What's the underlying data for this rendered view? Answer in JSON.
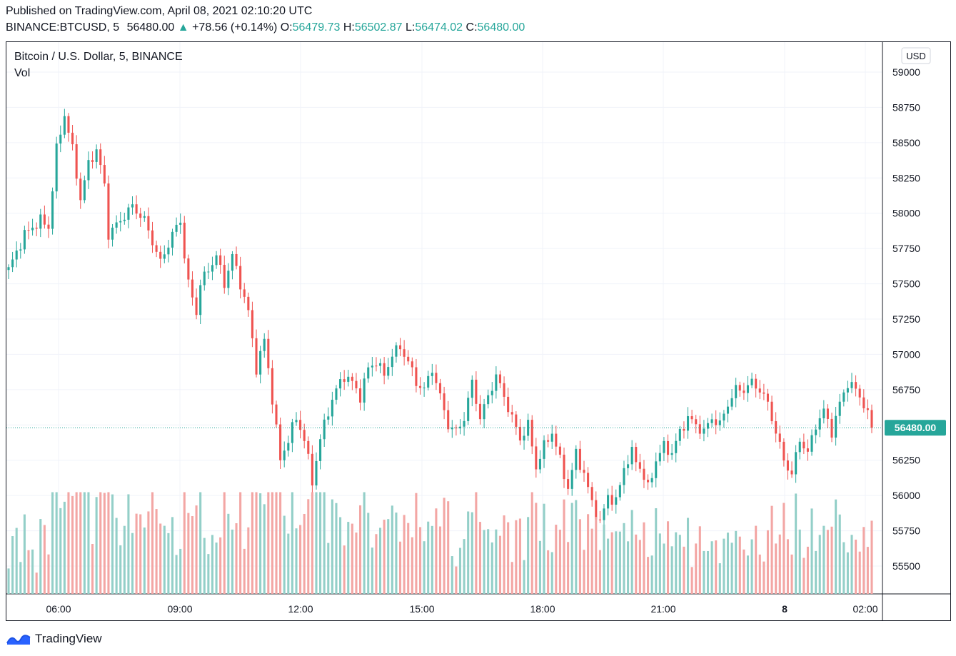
{
  "header": {
    "published": "Published on TradingView.com, April 08, 2021 02:10:20 UTC",
    "symbol_line": "BINANCE:BTCUSD, 5",
    "last": "56480.00",
    "change": "+78.56 (+0.14%)",
    "o_label": "O:",
    "o_value": "56479.73",
    "h_label": "H:",
    "h_value": "56502.87",
    "l_label": "L:",
    "l_value": "56474.02",
    "c_label": "C:",
    "c_value": "56480.00"
  },
  "legend": {
    "title": "Bitcoin / U.S. Dollar, 5, BINANCE",
    "volume_label": "Vol"
  },
  "currency_button": "USD",
  "price_label": "56480.00",
  "brand": "TradingView",
  "colors": {
    "up": "#26a69a",
    "down": "#ef5350",
    "up_vol": "#93cfc8",
    "down_vol": "#f3a6a4",
    "grid": "#f0f3fa",
    "price_tag": "#26a69a"
  },
  "chart_data": {
    "type": "candlestick",
    "title": "Bitcoin / U.S. Dollar, 5, BINANCE",
    "ylim": [
      55300,
      59150
    ],
    "y_ticks": [
      59000,
      58750,
      58500,
      58250,
      58000,
      57750,
      57500,
      57250,
      57000,
      56750,
      56500,
      56250,
      56000,
      55750,
      55500
    ],
    "x_ticks": [
      "06:00",
      "09:00",
      "12:00",
      "15:00",
      "18:00",
      "21:00",
      "8",
      "02:00"
    ],
    "x_ticks_bold": [
      "8"
    ],
    "last_price": 56480.0,
    "grid": true,
    "ohlc_anchors": [
      {
        "t": 0,
        "p": 57600
      },
      {
        "t": 4,
        "p": 57850
      },
      {
        "t": 8,
        "p": 57950
      },
      {
        "t": 10,
        "p": 57900
      },
      {
        "t": 12,
        "p": 58450
      },
      {
        "t": 14,
        "p": 58700
      },
      {
        "t": 16,
        "p": 58450
      },
      {
        "t": 18,
        "p": 58100
      },
      {
        "t": 20,
        "p": 58350
      },
      {
        "t": 22,
        "p": 58450
      },
      {
        "t": 24,
        "p": 58200
      },
      {
        "t": 25,
        "p": 57850
      },
      {
        "t": 28,
        "p": 57950
      },
      {
        "t": 31,
        "p": 58050
      },
      {
        "t": 34,
        "p": 57950
      },
      {
        "t": 36,
        "p": 57800
      },
      {
        "t": 38,
        "p": 57650
      },
      {
        "t": 41,
        "p": 57850
      },
      {
        "t": 43,
        "p": 57950
      },
      {
        "t": 44,
        "p": 57700
      },
      {
        "t": 45,
        "p": 57500
      },
      {
        "t": 47,
        "p": 57300
      },
      {
        "t": 48,
        "p": 57500
      },
      {
        "t": 50,
        "p": 57600
      },
      {
        "t": 52,
        "p": 57700
      },
      {
        "t": 54,
        "p": 57500
      },
      {
        "t": 56,
        "p": 57700
      },
      {
        "t": 58,
        "p": 57500
      },
      {
        "t": 60,
        "p": 57300
      },
      {
        "t": 62,
        "p": 56900
      },
      {
        "t": 64,
        "p": 57100
      },
      {
        "t": 65,
        "p": 56900
      },
      {
        "t": 68,
        "p": 56250
      },
      {
        "t": 70,
        "p": 56400
      },
      {
        "t": 72,
        "p": 56550
      },
      {
        "t": 74,
        "p": 56400
      },
      {
        "t": 76,
        "p": 56100
      },
      {
        "t": 78,
        "p": 56400
      },
      {
        "t": 80,
        "p": 56600
      },
      {
        "t": 82,
        "p": 56750
      },
      {
        "t": 84,
        "p": 56850
      },
      {
        "t": 86,
        "p": 56800
      },
      {
        "t": 88,
        "p": 56700
      },
      {
        "t": 90,
        "p": 56900
      },
      {
        "t": 92,
        "p": 56950
      },
      {
        "t": 94,
        "p": 56850
      },
      {
        "t": 96,
        "p": 57000
      },
      {
        "t": 98,
        "p": 57050
      },
      {
        "t": 100,
        "p": 56950
      },
      {
        "t": 102,
        "p": 56800
      },
      {
        "t": 104,
        "p": 56750
      },
      {
        "t": 106,
        "p": 56900
      },
      {
        "t": 108,
        "p": 56700
      },
      {
        "t": 110,
        "p": 56500
      },
      {
        "t": 112,
        "p": 56450
      },
      {
        "t": 114,
        "p": 56550
      },
      {
        "t": 116,
        "p": 56800
      },
      {
        "t": 118,
        "p": 56550
      },
      {
        "t": 120,
        "p": 56700
      },
      {
        "t": 122,
        "p": 56850
      },
      {
        "t": 124,
        "p": 56700
      },
      {
        "t": 126,
        "p": 56550
      },
      {
        "t": 128,
        "p": 56400
      },
      {
        "t": 130,
        "p": 56500
      },
      {
        "t": 132,
        "p": 56200
      },
      {
        "t": 134,
        "p": 56350
      },
      {
        "t": 136,
        "p": 56450
      },
      {
        "t": 138,
        "p": 56250
      },
      {
        "t": 140,
        "p": 56050
      },
      {
        "t": 142,
        "p": 56300
      },
      {
        "t": 144,
        "p": 56150
      },
      {
        "t": 146,
        "p": 55950
      },
      {
        "t": 148,
        "p": 55800
      },
      {
        "t": 150,
        "p": 56000
      },
      {
        "t": 152,
        "p": 55950
      },
      {
        "t": 154,
        "p": 56200
      },
      {
        "t": 156,
        "p": 56300
      },
      {
        "t": 158,
        "p": 56200
      },
      {
        "t": 160,
        "p": 56050
      },
      {
        "t": 162,
        "p": 56250
      },
      {
        "t": 164,
        "p": 56350
      },
      {
        "t": 166,
        "p": 56300
      },
      {
        "t": 168,
        "p": 56450
      },
      {
        "t": 170,
        "p": 56550
      },
      {
        "t": 172,
        "p": 56500
      },
      {
        "t": 174,
        "p": 56450
      },
      {
        "t": 176,
        "p": 56550
      },
      {
        "t": 178,
        "p": 56500
      },
      {
        "t": 180,
        "p": 56650
      },
      {
        "t": 182,
        "p": 56750
      },
      {
        "t": 184,
        "p": 56750
      },
      {
        "t": 186,
        "p": 56800
      },
      {
        "t": 188,
        "p": 56750
      },
      {
        "t": 190,
        "p": 56650
      },
      {
        "t": 192,
        "p": 56450
      },
      {
        "t": 194,
        "p": 56250
      },
      {
        "t": 196,
        "p": 56150
      },
      {
        "t": 198,
        "p": 56400
      },
      {
        "t": 200,
        "p": 56300
      },
      {
        "t": 202,
        "p": 56500
      },
      {
        "t": 204,
        "p": 56600
      },
      {
        "t": 206,
        "p": 56450
      },
      {
        "t": 208,
        "p": 56650
      },
      {
        "t": 210,
        "p": 56800
      },
      {
        "t": 212,
        "p": 56750
      },
      {
        "t": 214,
        "p": 56650
      },
      {
        "t": 216,
        "p": 56480
      }
    ],
    "volume_ylim": [
      0,
      1
    ]
  }
}
